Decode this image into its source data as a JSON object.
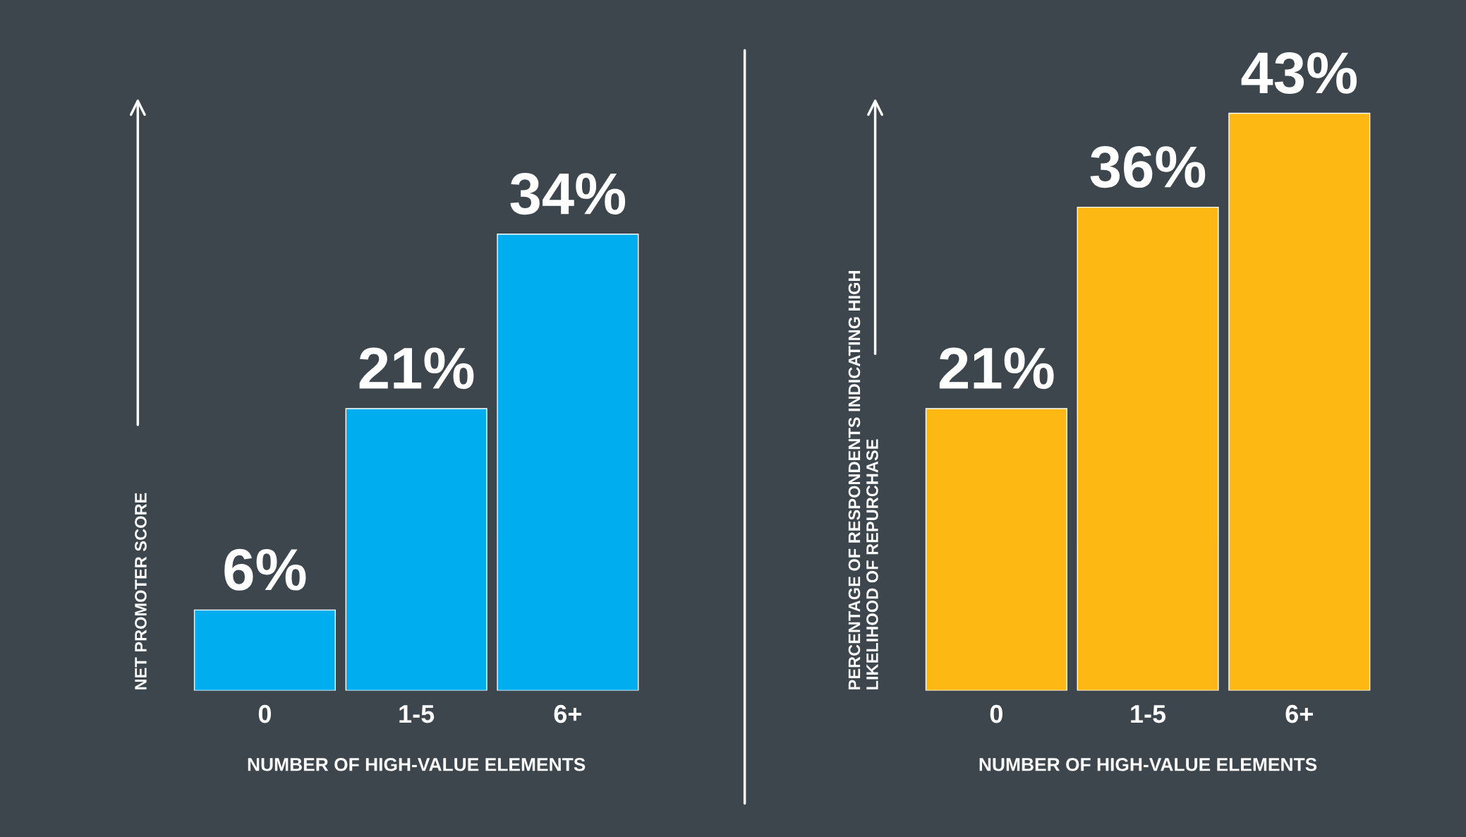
{
  "chart_data": [
    {
      "type": "bar",
      "categories": [
        "0",
        "1-5",
        "6+"
      ],
      "values": [
        6,
        21,
        34
      ],
      "color": "#00adef",
      "value_labels": [
        "6%",
        "21%",
        "34%"
      ],
      "xlabel": "NUMBER OF HIGH-VALUE ELEMENTS",
      "ylabel": "NET PROMOTER SCORE",
      "tick_labels": "x",
      "grid": false,
      "legend": false
    },
    {
      "type": "bar",
      "categories": [
        "0",
        "1-5",
        "6+"
      ],
      "values": [
        21,
        36,
        43
      ],
      "color": "#fdb813",
      "value_labels": [
        "21%",
        "36%",
        "43%"
      ],
      "xlabel": "NUMBER OF HIGH-VALUE ELEMENTS",
      "ylabel": "PERCENTAGE OF RESPONDENTS INDICATING HIGH\nLIKELIHOOD OF REPURCHASE",
      "tick_labels": "x",
      "grid": false,
      "legend": false
    }
  ]
}
